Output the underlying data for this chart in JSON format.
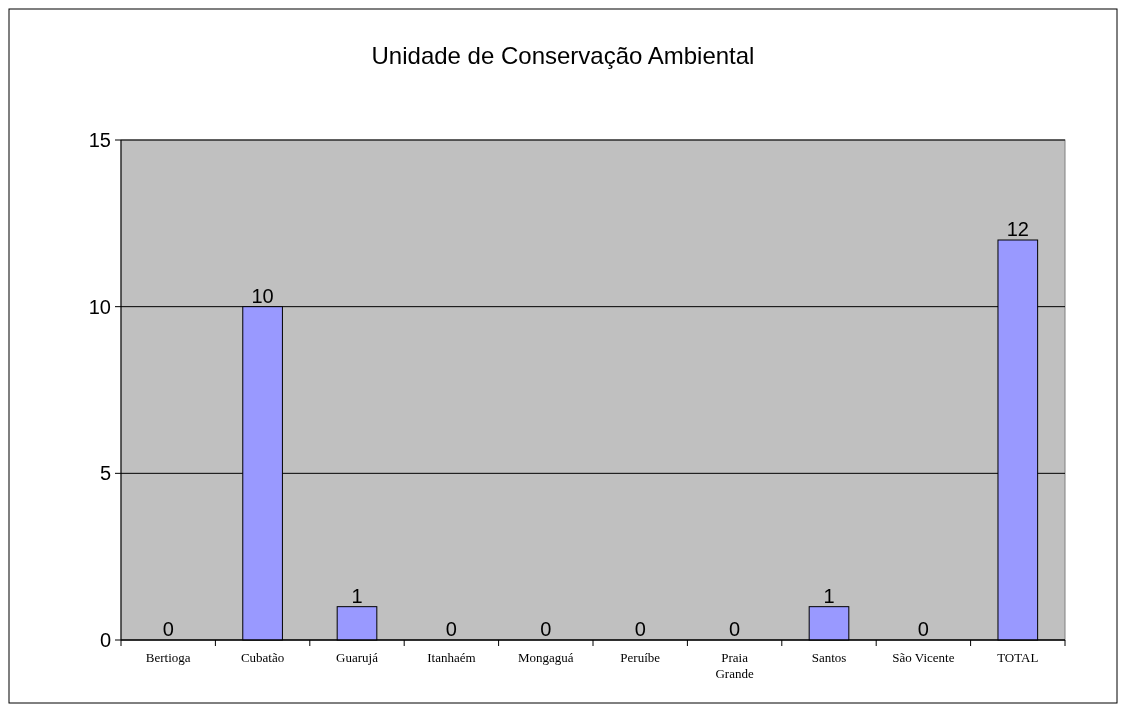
{
  "chart_data": {
    "type": "bar",
    "title": "Unidade de Conservação Ambiental",
    "categories": [
      "Bertioga",
      "Cubatão",
      "Guarujá",
      "Itanhaém",
      "Mongaguá",
      "Peruíbe",
      "Praia Grande",
      "Santos",
      "São Vicente",
      "TOTAL"
    ],
    "values": [
      0,
      10,
      1,
      0,
      0,
      0,
      0,
      1,
      0,
      12
    ],
    "color": "#9999ff",
    "ylim": [
      0,
      15
    ],
    "yticks": [
      0,
      5,
      10,
      15
    ],
    "grid": "y",
    "data_labels": true
  }
}
